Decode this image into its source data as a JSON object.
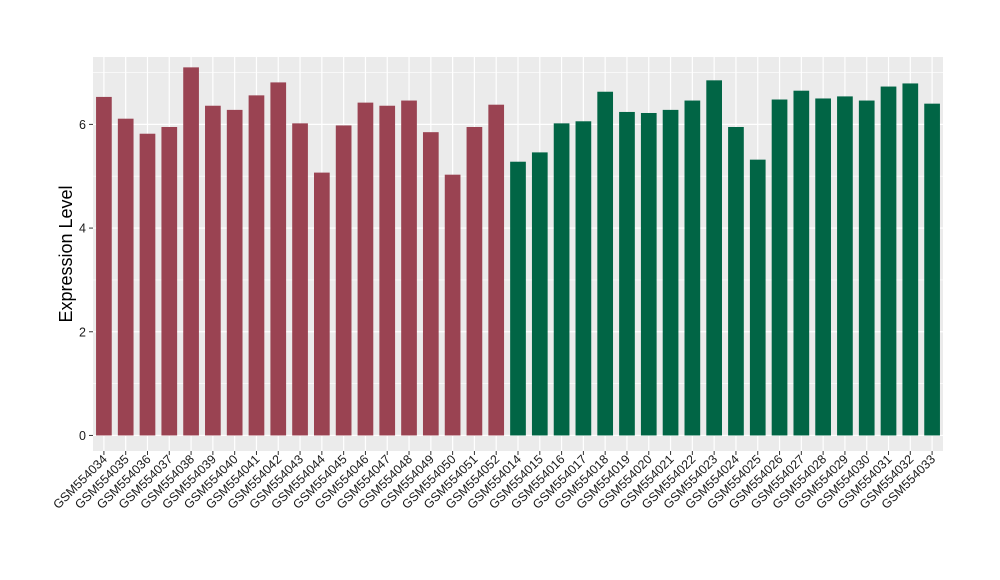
{
  "chart_data": {
    "type": "bar",
    "ylabel": "Expression Level",
    "xlabel": "",
    "ylim": [
      -0.3,
      7.3
    ],
    "y_ticks": [
      0,
      2,
      4,
      6
    ],
    "grid": true,
    "legend": "none",
    "background_color": "#ebebeb",
    "grid_color": "#ffffff",
    "categories": [
      "GSM554034",
      "GSM554035",
      "GSM554036",
      "GSM554037",
      "GSM554038",
      "GSM554039",
      "GSM554040",
      "GSM554041",
      "GSM554042",
      "GSM554043",
      "GSM554044",
      "GSM554045",
      "GSM554046",
      "GSM554047",
      "GSM554048",
      "GSM554049",
      "GSM554050",
      "GSM554051",
      "GSM554052",
      "GSM554014",
      "GSM554015",
      "GSM554016",
      "GSM554017",
      "GSM554018",
      "GSM554019",
      "GSM554020",
      "GSM554021",
      "GSM554022",
      "GSM554023",
      "GSM554024",
      "GSM554025",
      "GSM554026",
      "GSM554027",
      "GSM554028",
      "GSM554029",
      "GSM554030",
      "GSM554031",
      "GSM554032",
      "GSM554033"
    ],
    "values": [
      6.53,
      6.11,
      5.82,
      5.95,
      7.1,
      6.36,
      6.28,
      6.56,
      6.81,
      6.02,
      5.07,
      5.98,
      6.42,
      6.36,
      6.46,
      5.85,
      5.03,
      5.95,
      6.38,
      5.28,
      5.46,
      6.02,
      6.06,
      6.63,
      6.24,
      6.22,
      6.28,
      6.46,
      6.85,
      5.95,
      5.32,
      6.48,
      6.65,
      6.5,
      6.54,
      6.46,
      6.73,
      6.79,
      6.4
    ],
    "bar_colors": [
      "#9a4352",
      "#9a4352",
      "#9a4352",
      "#9a4352",
      "#9a4352",
      "#9a4352",
      "#9a4352",
      "#9a4352",
      "#9a4352",
      "#9a4352",
      "#9a4352",
      "#9a4352",
      "#9a4352",
      "#9a4352",
      "#9a4352",
      "#9a4352",
      "#9a4352",
      "#9a4352",
      "#9a4352",
      "#016545",
      "#016545",
      "#016545",
      "#016545",
      "#016545",
      "#016545",
      "#016545",
      "#016545",
      "#016545",
      "#016545",
      "#016545",
      "#016545",
      "#016545",
      "#016545",
      "#016545",
      "#016545",
      "#016545",
      "#016545",
      "#016545",
      "#016545"
    ]
  }
}
